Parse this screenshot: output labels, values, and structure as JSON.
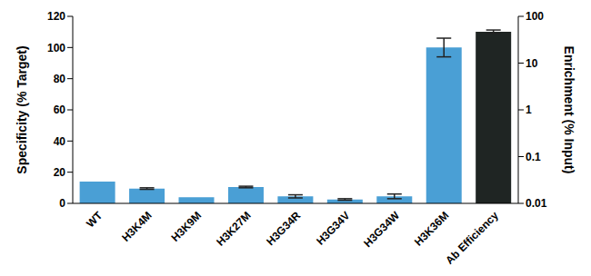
{
  "chart_data": {
    "type": "bar",
    "categories": [
      "WT",
      "H3K4M",
      "H3K9M",
      "H3K27M",
      "H3G34R",
      "H3G34V",
      "H3G34W",
      "H3K36M",
      "Ab Efficiency"
    ],
    "series": [
      {
        "color": "#4a9fd5",
        "values": [
          14,
          9.5,
          4,
          10.5,
          4.5,
          2.5,
          4.5,
          100,
          null
        ],
        "errors": [
          0,
          0.5,
          0,
          0.5,
          1,
          0.5,
          1.5,
          6,
          null
        ]
      },
      {
        "color": "#1f2523",
        "axis": "y2",
        "values": [
          null,
          null,
          null,
          null,
          null,
          null,
          null,
          null,
          47
        ],
        "errors": [
          null,
          null,
          null,
          null,
          null,
          null,
          null,
          null,
          4
        ]
      }
    ],
    "ylabel": "Specificity (% Target)",
    "y2label": "Enrichment (% Input)",
    "ylim": [
      0,
      120
    ],
    "yticks": [
      0,
      20,
      40,
      60,
      80,
      100,
      120
    ],
    "y2lim": [
      0.01,
      100
    ],
    "y2ticks": [
      0.01,
      0.1,
      1,
      10,
      100
    ],
    "log": "y2",
    "grid": false
  }
}
